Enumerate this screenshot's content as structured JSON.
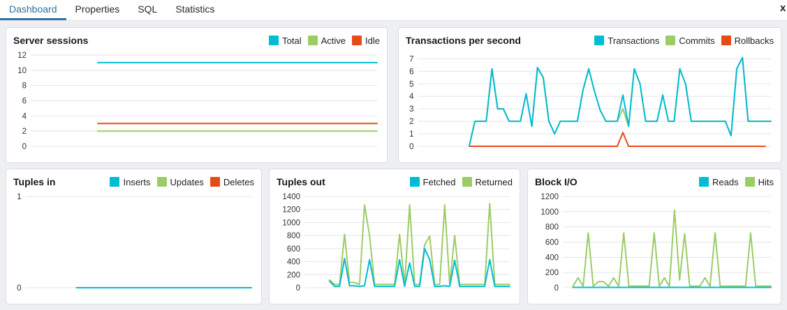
{
  "tabs": {
    "items": [
      {
        "label": "Dashboard",
        "active": true
      },
      {
        "label": "Properties",
        "active": false
      },
      {
        "label": "SQL",
        "active": false
      },
      {
        "label": "Statistics",
        "active": false
      }
    ],
    "close_label": "x"
  },
  "colors": {
    "cyan": "#00BCD4",
    "green": "#9CCC65",
    "red": "#E64A19",
    "tab_active_text": "#2f6f9e",
    "tab_active_underline": "#38719f",
    "gridline": "#e1e4ea",
    "tick_label": "#303236"
  },
  "chart_data": [
    {
      "type": "line",
      "title": "Server sessions",
      "xlabel": "",
      "ylabel": "",
      "ylim": [
        0,
        12
      ],
      "yticks": [
        0,
        2,
        4,
        6,
        8,
        10,
        12
      ],
      "grid": true,
      "legend_position": "top-right",
      "series": [
        {
          "name": "Total",
          "color": "#00BCD4",
          "values": [
            null,
            null,
            null,
            null,
            null,
            null,
            11,
            11,
            11,
            11,
            11,
            11,
            11,
            11,
            11,
            11,
            11,
            11,
            11,
            11,
            11,
            11,
            11,
            11,
            11,
            11,
            11,
            11,
            11,
            11,
            11,
            11
          ]
        },
        {
          "name": "Active",
          "color": "#9CCC65",
          "values": [
            null,
            null,
            null,
            null,
            null,
            null,
            2,
            2,
            2,
            2,
            2,
            2,
            2,
            2,
            2,
            2,
            2,
            2,
            2,
            2,
            2,
            2,
            2,
            2,
            2,
            2,
            2,
            2,
            2,
            2,
            2,
            2
          ]
        },
        {
          "name": "Idle",
          "color": "#E64A19",
          "values": [
            null,
            null,
            null,
            null,
            null,
            null,
            3,
            3,
            3,
            3,
            3,
            3,
            3,
            3,
            3,
            3,
            3,
            3,
            3,
            3,
            3,
            3,
            3,
            3,
            3,
            3,
            3,
            3,
            3,
            3,
            3,
            3
          ]
        }
      ]
    },
    {
      "type": "line",
      "title": "Transactions per second",
      "xlabel": "",
      "ylabel": "",
      "ylim": [
        0,
        7.3
      ],
      "yticks": [
        0,
        1,
        2,
        3,
        4,
        5,
        6,
        7
      ],
      "grid": true,
      "legend_position": "top-right",
      "series": [
        {
          "name": "Transactions",
          "color": "#00BCD4",
          "values": [
            null,
            null,
            null,
            null,
            null,
            null,
            null,
            null,
            null,
            0,
            2,
            2,
            2,
            6.2,
            3,
            3,
            2,
            2,
            2,
            4.2,
            1.6,
            6.3,
            5.5,
            2,
            1,
            2,
            2,
            2,
            2,
            4.5,
            6.2,
            4.4,
            2.9,
            2,
            2,
            2,
            4.1,
            1.6,
            6.2,
            5,
            2,
            2,
            2,
            4.1,
            2,
            2,
            6.2,
            5,
            2,
            2,
            2,
            2,
            2,
            2,
            2,
            0.85,
            6.2,
            7.1,
            2,
            2,
            2,
            2,
            2
          ]
        },
        {
          "name": "Commits",
          "color": "#9CCC65",
          "values": [
            null,
            null,
            null,
            null,
            null,
            null,
            null,
            null,
            null,
            0,
            2,
            2,
            2,
            6.2,
            3,
            3,
            2,
            2,
            2,
            4.2,
            1.6,
            6.3,
            5.5,
            2,
            1,
            2,
            2,
            2,
            2,
            4.5,
            6.2,
            4.4,
            2.9,
            2,
            2,
            2,
            3,
            1.6,
            6.2,
            5,
            2,
            2,
            2,
            4.1,
            2,
            2,
            6.2,
            5,
            2,
            2,
            2,
            2,
            2,
            2,
            2,
            0.85,
            6.2,
            7.1,
            2,
            2,
            2,
            2,
            2
          ]
        },
        {
          "name": "Rollbacks",
          "color": "#E64A19",
          "values": [
            null,
            null,
            null,
            null,
            null,
            null,
            null,
            null,
            null,
            0,
            0,
            0,
            0,
            0,
            0,
            0,
            0,
            0,
            0,
            0,
            0,
            0,
            0,
            0,
            0,
            0,
            0,
            0,
            0,
            0,
            0,
            0,
            0,
            0,
            0,
            0,
            1.1,
            0,
            0,
            0,
            0,
            0,
            0,
            0,
            0,
            0,
            0,
            0,
            0,
            0,
            0,
            0,
            0,
            0,
            0,
            0,
            0,
            0,
            0,
            0,
            0,
            0
          ]
        }
      ]
    },
    {
      "type": "line",
      "title": "Tuples in",
      "xlabel": "",
      "ylabel": "",
      "ylim": [
        0,
        1
      ],
      "yticks": [
        0,
        1
      ],
      "grid": true,
      "legend_position": "top-right",
      "series": [
        {
          "name": "Inserts",
          "color": "#00BCD4",
          "values": [
            null,
            null,
            null,
            null,
            null,
            null,
            null,
            0,
            0,
            0,
            0,
            0,
            0,
            0,
            0,
            0,
            0,
            0,
            0,
            0,
            0,
            0,
            0,
            0,
            0,
            0,
            0,
            0,
            0,
            0,
            0,
            0
          ]
        },
        {
          "name": "Updates",
          "color": "#9CCC65",
          "values": [
            null,
            null,
            null,
            null,
            null,
            null,
            null,
            0,
            0,
            0,
            0,
            0,
            0,
            0,
            0,
            0,
            0,
            0,
            0,
            0,
            0,
            0,
            0,
            0,
            0,
            0,
            0,
            0,
            0,
            0,
            0,
            0
          ]
        },
        {
          "name": "Deletes",
          "color": "#E64A19",
          "values": [
            null,
            null,
            null,
            null,
            null,
            null,
            null,
            0,
            0,
            0,
            0,
            0,
            0,
            0,
            0,
            0,
            0,
            0,
            0,
            0,
            0,
            0,
            0,
            0,
            0,
            0,
            0,
            0,
            0,
            0,
            0,
            0
          ]
        }
      ]
    },
    {
      "type": "line",
      "title": "Tuples out",
      "xlabel": "",
      "ylabel": "",
      "ylim": [
        0,
        1400
      ],
      "yticks": [
        0,
        200,
        400,
        600,
        800,
        1000,
        1200,
        1400
      ],
      "grid": true,
      "legend_position": "top-right",
      "series": [
        {
          "name": "Fetched",
          "color": "#00BCD4",
          "values": [
            null,
            null,
            null,
            null,
            null,
            100,
            20,
            20,
            450,
            30,
            30,
            20,
            30,
            430,
            20,
            20,
            20,
            20,
            20,
            430,
            20,
            380,
            20,
            20,
            600,
            430,
            20,
            20,
            30,
            20,
            420,
            20,
            20,
            20,
            20,
            20,
            20,
            430,
            20,
            20,
            20,
            20
          ]
        },
        {
          "name": "Returned",
          "color": "#9CCC65",
          "values": [
            null,
            null,
            null,
            null,
            null,
            120,
            50,
            50,
            820,
            80,
            80,
            50,
            1270,
            800,
            50,
            50,
            50,
            50,
            50,
            820,
            50,
            1270,
            50,
            50,
            660,
            790,
            50,
            50,
            1270,
            50,
            800,
            50,
            50,
            50,
            50,
            50,
            50,
            1290,
            50,
            50,
            50,
            50
          ]
        }
      ]
    },
    {
      "type": "line",
      "title": "Block I/O",
      "xlabel": "",
      "ylabel": "",
      "ylim": [
        0,
        1200
      ],
      "yticks": [
        0,
        200,
        400,
        600,
        800,
        1000,
        1200
      ],
      "grid": true,
      "legend_position": "top-right",
      "series": [
        {
          "name": "Reads",
          "color": "#00BCD4",
          "values": [
            null,
            null,
            5,
            5,
            5,
            5,
            5,
            5,
            5,
            5,
            5,
            5,
            5,
            5,
            5,
            5,
            5,
            5,
            5,
            5,
            5,
            5,
            5,
            5,
            5,
            5,
            5,
            5,
            5,
            5,
            5,
            5,
            5,
            5,
            5,
            5,
            5,
            5,
            5,
            5,
            5,
            5
          ]
        },
        {
          "name": "Hits",
          "color": "#9CCC65",
          "values": [
            null,
            null,
            20,
            130,
            20,
            720,
            20,
            80,
            80,
            20,
            130,
            20,
            720,
            20,
            20,
            20,
            20,
            20,
            720,
            20,
            130,
            20,
            1020,
            100,
            710,
            20,
            20,
            20,
            130,
            20,
            720,
            20,
            20,
            20,
            20,
            20,
            20,
            720,
            20,
            20,
            20,
            20
          ]
        }
      ]
    }
  ]
}
